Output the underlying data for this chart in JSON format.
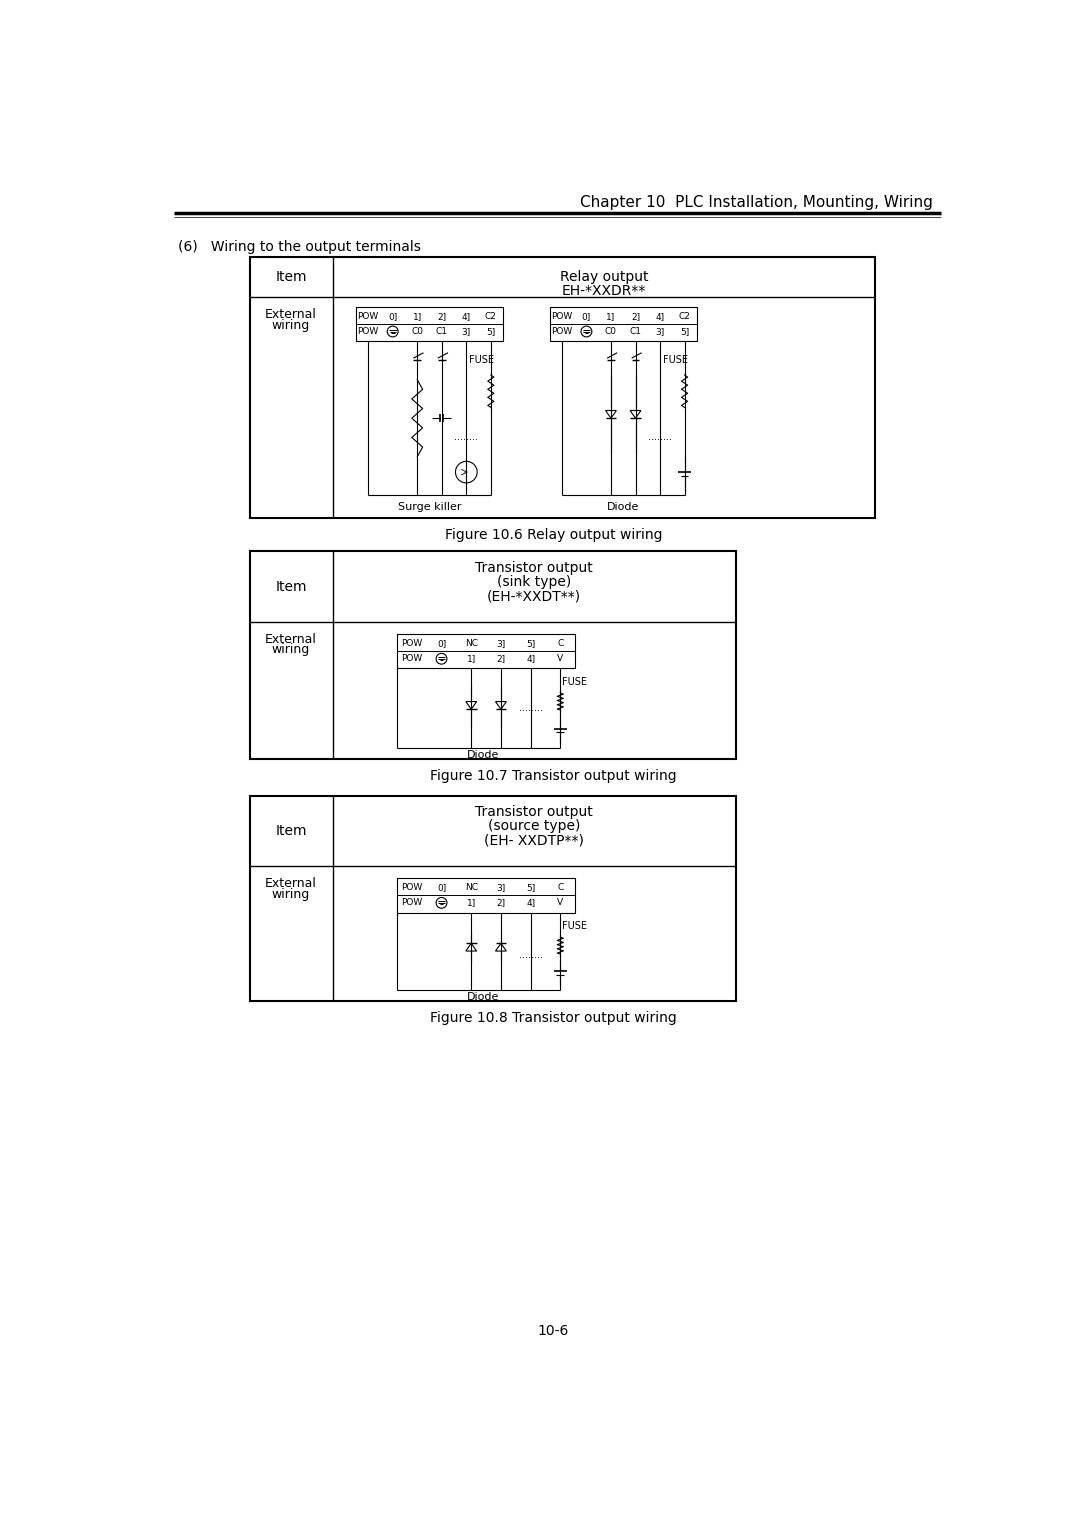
{
  "page_title": "Chapter 10  PLC Installation, Mounting, Wiring",
  "section_label": "(6)   Wiring to the output terminals",
  "fig1_caption": "Figure 10.6 Relay output wiring",
  "fig2_caption": "Figure 10.7 Transistor output wiring",
  "fig3_caption": "Figure 10.8 Transistor output wiring",
  "page_number": "10-6",
  "bg_color": "#ffffff"
}
